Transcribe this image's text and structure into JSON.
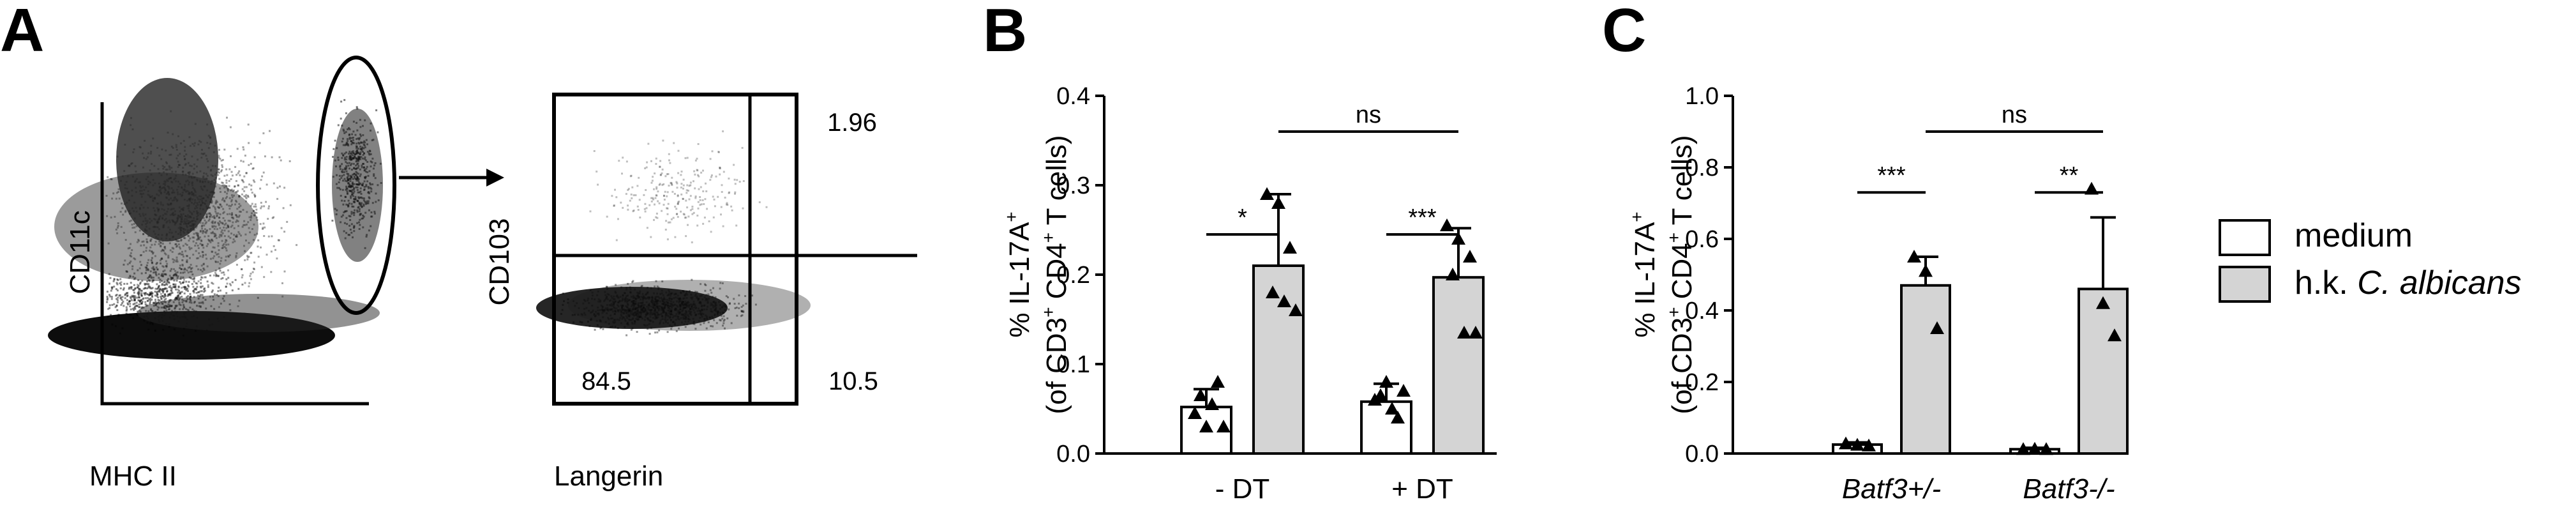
{
  "panels": {
    "a": {
      "letter": "A"
    },
    "b": {
      "letter": "B"
    },
    "c": {
      "letter": "C"
    }
  },
  "flow": {
    "plot1": {
      "xlabel": "MHC II",
      "ylabel": "CD11c"
    },
    "plot2": {
      "xlabel": "Langerin",
      "ylabel": "CD103",
      "quadrants": {
        "top_right": "1.96",
        "bottom_left": "84.5",
        "bottom_right": "10.5"
      }
    }
  },
  "legend": {
    "items": [
      {
        "label": "medium",
        "color": "#ffffff"
      },
      {
        "label": "h.k. ",
        "label_italic": "C. albicans",
        "color": "#d4d4d4"
      }
    ]
  },
  "chart_data": [
    {
      "panel": "B",
      "type": "bar",
      "categories": [
        "- DT",
        "+ DT"
      ],
      "series": [
        {
          "name": "medium",
          "color": "#ffffff",
          "values": [
            0.052,
            0.058
          ],
          "errors": [
            0.02,
            0.02
          ],
          "points": [
            [
              0.045,
              0.03,
              0.08,
              0.065,
              0.055,
              0.03
            ],
            [
              0.06,
              0.08,
              0.04,
              0.065,
              0.05,
              0.07
            ]
          ]
        },
        {
          "name": "h.k. C. albicans",
          "color": "#d4d4d4",
          "values": [
            0.21,
            0.197
          ],
          "errors": [
            0.08,
            0.055
          ],
          "points": [
            [
              0.29,
              0.28,
              0.23,
              0.18,
              0.17,
              0.16
            ],
            [
              0.255,
              0.24,
              0.22,
              0.2,
              0.135,
              0.135
            ]
          ]
        }
      ],
      "yticks": [
        "0.0",
        "0.1",
        "0.2",
        "0.3",
        "0.4"
      ],
      "ylim": [
        0,
        0.4
      ],
      "ylabel_line1": "% IL-17A",
      "ylabel_line1_sup": "+",
      "ylabel_line2_parts": [
        "(of CD3",
        "+",
        " CD4",
        "+",
        " T cells)"
      ],
      "significance": [
        {
          "label": "*",
          "level": 0.245
        },
        {
          "label": "***",
          "level": 0.245
        },
        {
          "label": "ns",
          "level": 0.36
        }
      ]
    },
    {
      "panel": "C",
      "type": "bar",
      "categories": [
        "Batf3+/-",
        "Batf3-/-"
      ],
      "series": [
        {
          "name": "medium",
          "color": "#ffffff",
          "values": [
            0.025,
            0.012
          ],
          "errors": [
            0.006,
            0.004
          ],
          "points": [
            [
              0.028,
              0.024,
              0.022
            ],
            [
              0.012,
              0.013,
              0.012
            ]
          ]
        },
        {
          "name": "h.k. C. albicans",
          "color": "#d4d4d4",
          "values": [
            0.47,
            0.46
          ],
          "errors": [
            0.08,
            0.2
          ],
          "points": [
            [
              0.55,
              0.51,
              0.35
            ],
            [
              0.74,
              0.42,
              0.33
            ]
          ]
        }
      ],
      "yticks": [
        "0.0",
        "0.2",
        "0.4",
        "0.6",
        "0.8",
        "1.0"
      ],
      "ylim": [
        0,
        1.0
      ],
      "ylabel_line1": "% IL-17A",
      "ylabel_line1_sup": "+",
      "ylabel_line2_parts": [
        "(of CD3",
        "+",
        " CD4",
        "+",
        " T cells)"
      ],
      "significance": [
        {
          "label": "***",
          "level": 0.73
        },
        {
          "label": "**",
          "level": 0.73
        },
        {
          "label": "ns",
          "level": 0.9
        }
      ]
    }
  ]
}
